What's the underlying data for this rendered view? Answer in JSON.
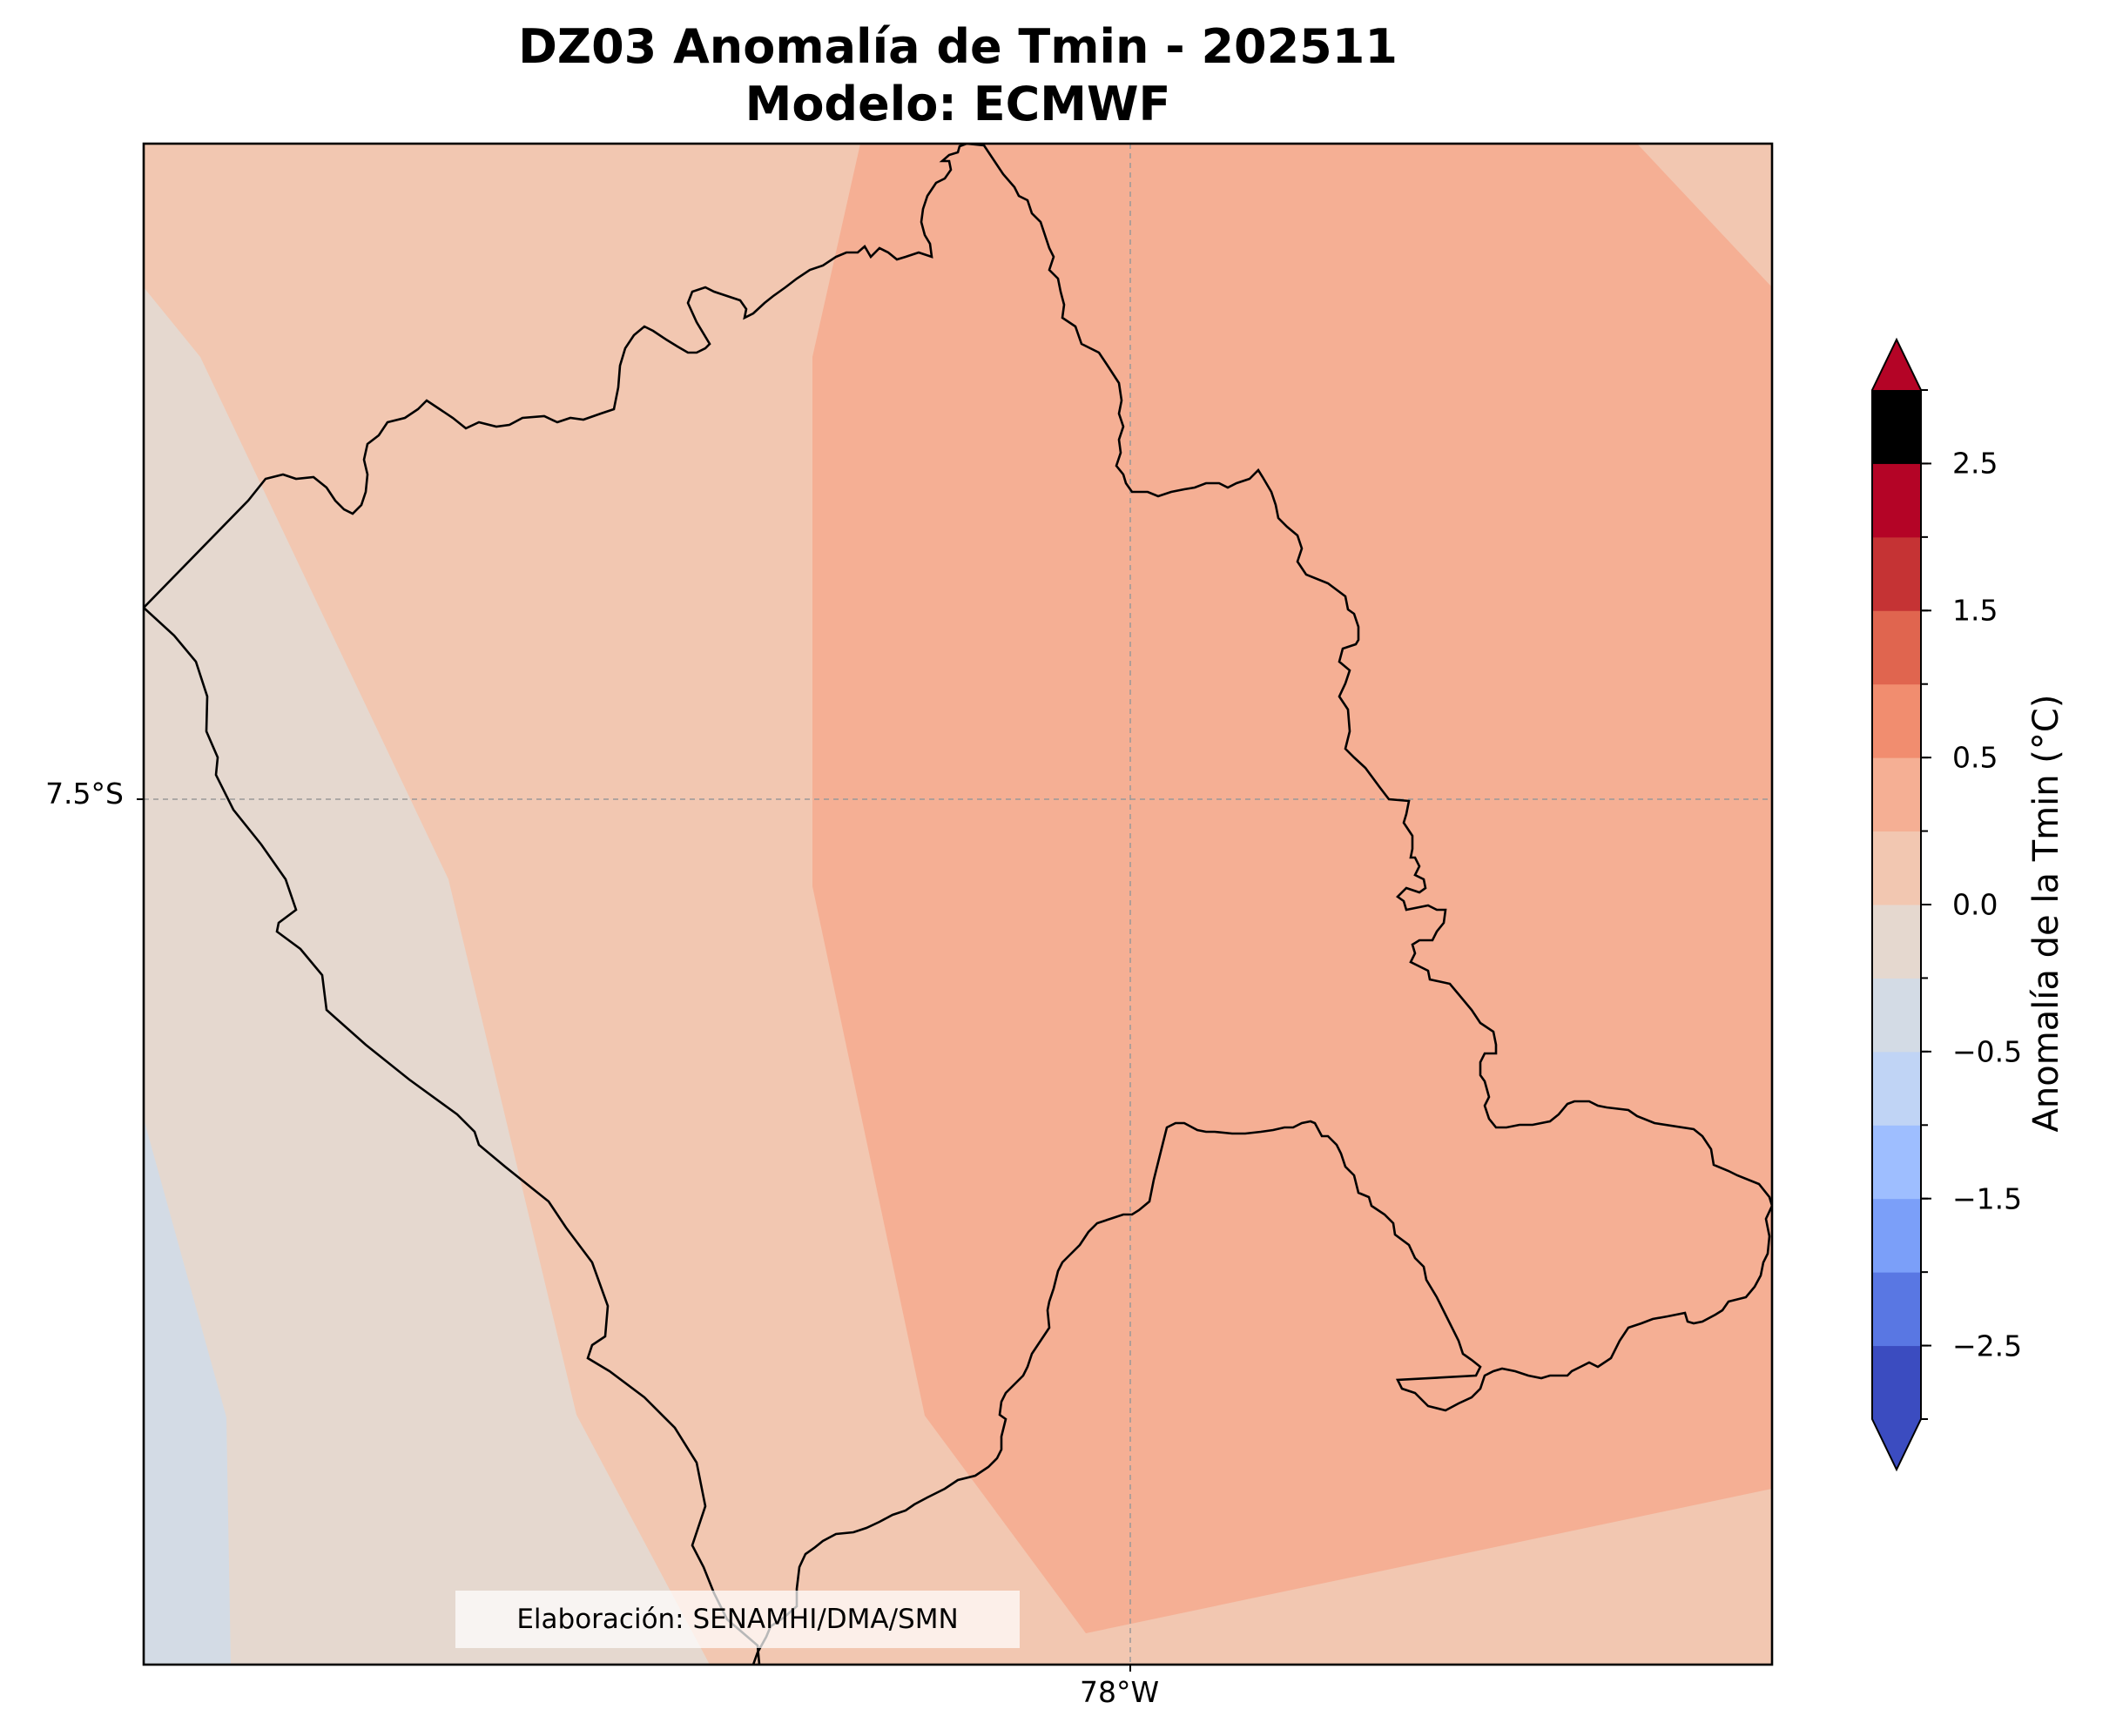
{
  "title": {
    "line1": "DZ03 Anomalía de Tmin - 202511",
    "line2": "Modelo: ECMWF"
  },
  "map": {
    "latitude_label": "7.5°S",
    "longitude_label": "78°W",
    "gridlines": "dashed",
    "credit": "Elaboración: SENAMHI/DMA/SMN"
  },
  "fill_colors": {
    "neg_0.5_to_0.0": "#d3dbe5",
    "0.0_to_0.25": "#e5d8cf",
    "0.25_to_0.5": "#f2c7b1",
    "0.5_to_1.0": "#f5af94"
  },
  "colorbar": {
    "label": "Anomalía de la Tmin (°C)",
    "extend": "both",
    "under_color": "#3b4cc0",
    "over_color": "#b40426",
    "levels": [
      -3.0,
      -2.5,
      -2.0,
      -1.5,
      -1.0,
      -0.5,
      -0.25,
      0.0,
      0.25,
      0.5,
      1.0,
      1.5,
      2.0,
      2.5,
      3.0
    ],
    "colors": [
      "#3b4cc0",
      "#5977e3",
      "#7b9ff9",
      "#9ebeff",
      "#c0d4f5",
      "#d3dbe5",
      "#e5d8cf",
      "#f2c7b1",
      "#f5af94",
      "#f18d6f",
      "#e0654f",
      "#c53334",
      "#b40426"
    ],
    "tick_labels": [
      "−2.5",
      "−1.5",
      "−0.5",
      "0.0",
      "0.5",
      "1.5",
      "2.5"
    ],
    "tick_values": [
      -2.5,
      -1.5,
      -0.5,
      0.0,
      0.5,
      1.5,
      2.5
    ]
  }
}
